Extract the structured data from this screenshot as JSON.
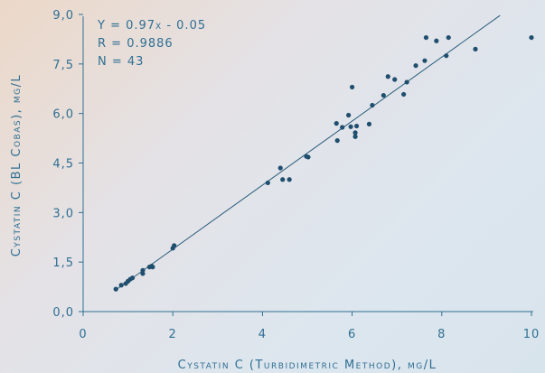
{
  "chart_data": {
    "type": "scatter",
    "xlabel": "Cystatin C (Turbidimetric Method), mg/L",
    "ylabel": "Cystatin C (BL Cobas), mg/L",
    "xlim": [
      0,
      10
    ],
    "ylim": [
      0,
      9
    ],
    "x_ticks": [
      "0",
      "2",
      "4",
      "6",
      "8",
      "10"
    ],
    "y_ticks": [
      "0,0",
      "1,5",
      "3,0",
      "4,5",
      "6,0",
      "7,5",
      "9,0"
    ],
    "grid": false,
    "annotations": [
      "Y = 0.97x - 0.05",
      "R = 0.9886",
      "N = 43"
    ],
    "regression": {
      "slope": 0.97,
      "intercept": -0.05,
      "x_range": [
        0.7,
        9.3
      ]
    },
    "points": [
      [
        0.73,
        0.68
      ],
      [
        0.85,
        0.8
      ],
      [
        0.95,
        0.85
      ],
      [
        1.0,
        0.92
      ],
      [
        1.05,
        0.98
      ],
      [
        1.1,
        1.02
      ],
      [
        1.33,
        1.15
      ],
      [
        1.33,
        1.25
      ],
      [
        1.48,
        1.35
      ],
      [
        1.53,
        1.38
      ],
      [
        1.55,
        1.35
      ],
      [
        2.0,
        1.92
      ],
      [
        2.03,
        2.0
      ],
      [
        4.12,
        3.9
      ],
      [
        4.4,
        4.35
      ],
      [
        4.45,
        4.0
      ],
      [
        4.6,
        4.0
      ],
      [
        4.98,
        4.7
      ],
      [
        5.02,
        4.68
      ],
      [
        5.65,
        5.7
      ],
      [
        5.67,
        5.18
      ],
      [
        5.78,
        5.58
      ],
      [
        5.92,
        5.95
      ],
      [
        5.97,
        5.6
      ],
      [
        6.0,
        6.8
      ],
      [
        6.07,
        5.3
      ],
      [
        6.07,
        5.42
      ],
      [
        6.1,
        5.62
      ],
      [
        6.38,
        5.68
      ],
      [
        6.45,
        6.25
      ],
      [
        6.7,
        6.55
      ],
      [
        6.8,
        7.12
      ],
      [
        6.95,
        7.03
      ],
      [
        7.15,
        6.58
      ],
      [
        7.22,
        6.95
      ],
      [
        7.42,
        7.45
      ],
      [
        7.62,
        7.6
      ],
      [
        7.65,
        8.3
      ],
      [
        7.88,
        8.2
      ],
      [
        8.1,
        7.75
      ],
      [
        8.15,
        8.3
      ],
      [
        8.75,
        7.95
      ],
      [
        10.0,
        8.3
      ]
    ]
  }
}
